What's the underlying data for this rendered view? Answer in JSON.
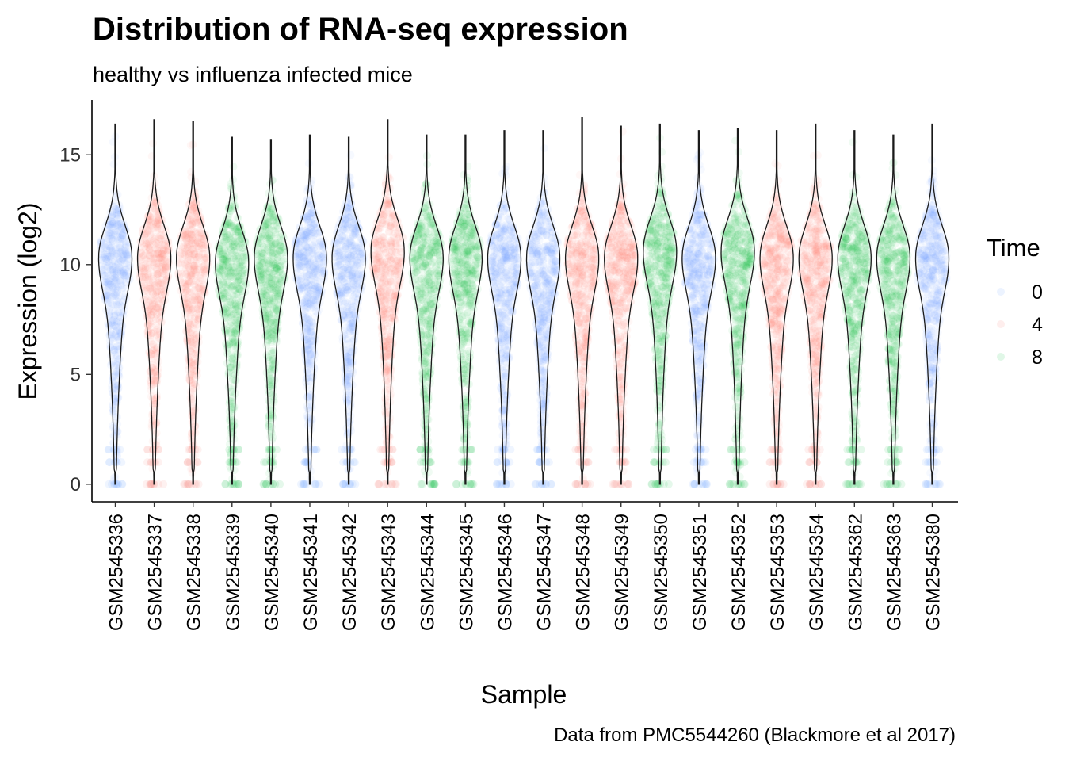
{
  "colors": {
    "time_0": "#619CFF",
    "time_4": "#F8766D",
    "time_8": "#00BA38"
  },
  "chart_data": {
    "type": "violin",
    "title": "Distribution of RNA-seq expression",
    "subtitle": "healthy vs influenza infected mice",
    "xlabel": "Sample",
    "ylabel": "Expression (log2)",
    "caption": "Data from PMC5544260 (Blackmore et al 2017)",
    "ylim": [
      -0.8,
      17.5
    ],
    "yticks": [
      "0",
      "5",
      "10",
      "15"
    ],
    "legend": {
      "title": "Time",
      "position": "right",
      "labels": [
        "0",
        "4",
        "8"
      ]
    },
    "categories": [
      "GSM2545336",
      "GSM2545337",
      "GSM2545338",
      "GSM2545339",
      "GSM2545340",
      "GSM2545341",
      "GSM2545342",
      "GSM2545343",
      "GSM2545344",
      "GSM2545345",
      "GSM2545346",
      "GSM2545347",
      "GSM2545348",
      "GSM2545349",
      "GSM2545350",
      "GSM2545351",
      "GSM2545352",
      "GSM2545353",
      "GSM2545354",
      "GSM2545362",
      "GSM2545363",
      "GSM2545380"
    ],
    "time": [
      "0",
      "4",
      "4",
      "8",
      "8",
      "0",
      "0",
      "4",
      "8",
      "8",
      "0",
      "0",
      "4",
      "4",
      "8",
      "0",
      "8",
      "4",
      "4",
      "8",
      "8",
      "0"
    ],
    "max_expression": [
      16.4,
      16.6,
      16.5,
      15.8,
      15.7,
      15.9,
      15.8,
      16.6,
      15.9,
      15.9,
      16.1,
      16.1,
      16.7,
      16.3,
      16.4,
      16.1,
      16.2,
      16.1,
      16.4,
      16.1,
      15.9,
      16.4
    ],
    "min_expression": [
      0,
      0,
      0,
      0,
      0,
      0,
      0,
      0,
      0,
      0,
      0,
      0,
      0,
      0,
      0,
      0,
      0,
      0,
      0,
      0,
      0,
      0
    ],
    "mode_expression": [
      10.5,
      10.5,
      10.5,
      10.3,
      10.5,
      10.5,
      10.5,
      10.8,
      10.5,
      10.5,
      10.5,
      10.5,
      10.5,
      10.5,
      10.8,
      10.5,
      10.8,
      10.5,
      10.5,
      10.5,
      10.5,
      10.5
    ]
  }
}
